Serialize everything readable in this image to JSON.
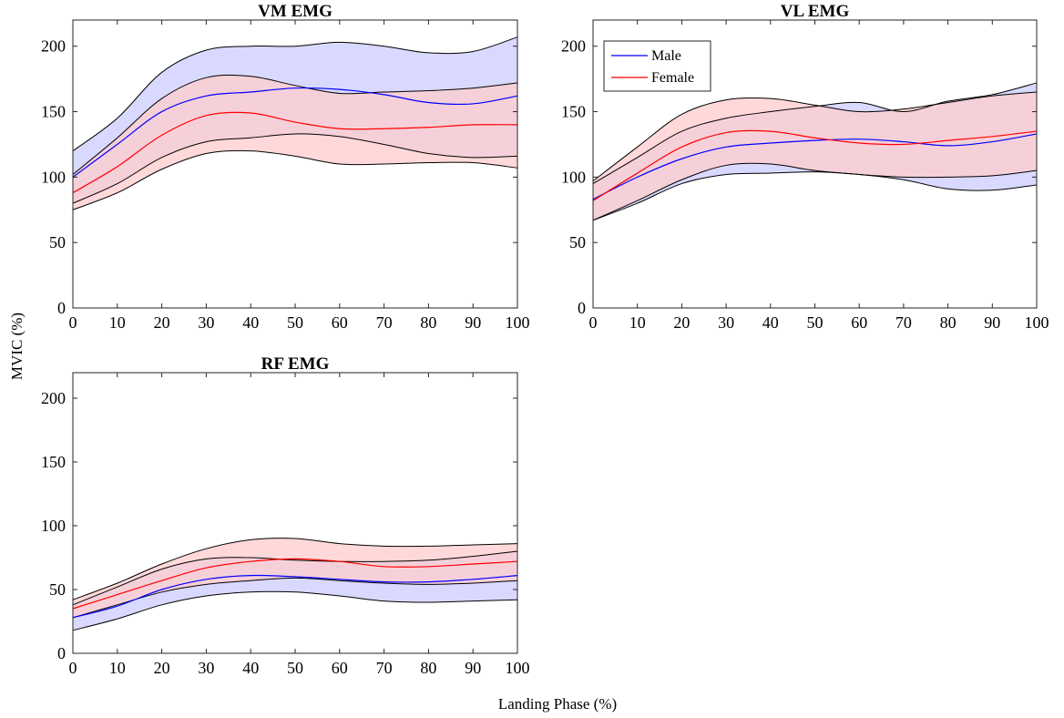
{
  "figure": {
    "ylabel": "MVIC (%)",
    "xlabel": "Landing Phase (%)"
  },
  "legend": {
    "entries": [
      {
        "name": "Male",
        "color": "#0000ff"
      },
      {
        "name": "Female",
        "color": "#ff0000"
      }
    ]
  },
  "colors": {
    "male_line": "#0000ff",
    "female_line": "#ff0000",
    "male_band": "#ccccff",
    "female_band": "#ffcccc",
    "band_edge": "#000000"
  },
  "chart_data": [
    {
      "type": "line",
      "title": "VM EMG",
      "x": [
        0,
        10,
        20,
        30,
        40,
        50,
        60,
        70,
        80,
        90,
        100
      ],
      "xlim": [
        0,
        100
      ],
      "ylim": [
        0,
        220
      ],
      "xticks": [
        0,
        10,
        20,
        30,
        40,
        50,
        60,
        70,
        80,
        90,
        100
      ],
      "yticks": [
        0,
        50,
        100,
        150,
        200
      ],
      "grid": false,
      "legend": false,
      "series": [
        {
          "name": "Male",
          "mean": [
            100,
            125,
            150,
            162,
            165,
            168,
            167,
            163,
            157,
            156,
            162
          ],
          "upper": [
            120,
            145,
            180,
            197,
            200,
            200,
            203,
            200,
            195,
            196,
            207
          ],
          "lower": [
            80,
            95,
            115,
            127,
            130,
            133,
            131,
            125,
            118,
            115,
            116
          ]
        },
        {
          "name": "Female",
          "mean": [
            88,
            108,
            132,
            147,
            149,
            142,
            137,
            137,
            138,
            140,
            140
          ],
          "upper": [
            102,
            130,
            160,
            176,
            177,
            170,
            164,
            165,
            166,
            168,
            172
          ],
          "lower": [
            75,
            88,
            106,
            118,
            120,
            116,
            110,
            110,
            111,
            111,
            107
          ]
        }
      ]
    },
    {
      "type": "line",
      "title": "VL EMG",
      "x": [
        0,
        10,
        20,
        30,
        40,
        50,
        60,
        70,
        80,
        90,
        100
      ],
      "xlim": [
        0,
        100
      ],
      "ylim": [
        0,
        220
      ],
      "xticks": [
        0,
        10,
        20,
        30,
        40,
        50,
        60,
        70,
        80,
        90,
        100
      ],
      "yticks": [
        0,
        50,
        100,
        150,
        200
      ],
      "grid": false,
      "legend": true,
      "legend_position": "top-left",
      "series": [
        {
          "name": "Male",
          "mean": [
            83,
            100,
            114,
            123,
            126,
            128,
            129,
            127,
            124,
            127,
            133
          ],
          "upper": [
            95,
            115,
            135,
            145,
            150,
            154,
            157,
            150,
            158,
            163,
            172
          ],
          "lower": [
            67,
            80,
            95,
            102,
            103,
            104,
            102,
            98,
            91,
            90,
            94
          ]
        },
        {
          "name": "Female",
          "mean": [
            82,
            103,
            123,
            134,
            135,
            130,
            126,
            125,
            128,
            131,
            135
          ],
          "upper": [
            97,
            123,
            148,
            159,
            160,
            155,
            150,
            152,
            157,
            162,
            165
          ],
          "lower": [
            67,
            82,
            98,
            109,
            110,
            105,
            102,
            100,
            100,
            101,
            105
          ]
        }
      ]
    },
    {
      "type": "line",
      "title": "RF EMG",
      "x": [
        0,
        10,
        20,
        30,
        40,
        50,
        60,
        70,
        80,
        90,
        100
      ],
      "xlim": [
        0,
        100
      ],
      "ylim": [
        0,
        220
      ],
      "xticks": [
        0,
        10,
        20,
        30,
        40,
        50,
        60,
        70,
        80,
        90,
        100
      ],
      "yticks": [
        0,
        50,
        100,
        150,
        200
      ],
      "grid": false,
      "legend": false,
      "series": [
        {
          "name": "Male",
          "mean": [
            28,
            37,
            50,
            58,
            61,
            60,
            58,
            56,
            56,
            58,
            61
          ],
          "upper": [
            38,
            52,
            66,
            74,
            75,
            73,
            72,
            72,
            73,
            76,
            80
          ],
          "lower": [
            18,
            27,
            38,
            45,
            48,
            48,
            45,
            41,
            40,
            41,
            42
          ]
        },
        {
          "name": "Female",
          "mean": [
            35,
            46,
            57,
            67,
            72,
            74,
            72,
            68,
            68,
            70,
            72
          ],
          "upper": [
            42,
            55,
            70,
            82,
            89,
            90,
            86,
            84,
            84,
            85,
            86
          ],
          "lower": [
            28,
            38,
            48,
            54,
            57,
            59,
            57,
            55,
            54,
            55,
            57
          ]
        }
      ]
    }
  ]
}
